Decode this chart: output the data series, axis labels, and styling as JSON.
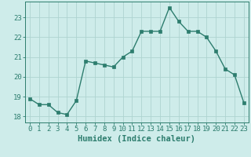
{
  "x": [
    0,
    1,
    2,
    3,
    4,
    5,
    6,
    7,
    8,
    9,
    10,
    11,
    12,
    13,
    14,
    15,
    16,
    17,
    18,
    19,
    20,
    21,
    22,
    23
  ],
  "y": [
    18.9,
    18.6,
    18.6,
    18.2,
    18.1,
    18.8,
    20.8,
    20.7,
    20.6,
    20.5,
    21.0,
    21.3,
    22.3,
    22.3,
    22.3,
    23.5,
    22.8,
    22.3,
    22.3,
    22.0,
    21.3,
    20.4,
    20.1,
    18.7
  ],
  "line_color": "#2d7d6e",
  "bg_color": "#ceecea",
  "grid_color": "#aed4d0",
  "axis_color": "#2d7d6e",
  "xlabel": "Humidex (Indice chaleur)",
  "ylim": [
    17.7,
    23.8
  ],
  "xlim": [
    -0.5,
    23.5
  ],
  "yticks": [
    18,
    19,
    20,
    21,
    22,
    23
  ],
  "xticks": [
    0,
    1,
    2,
    3,
    4,
    5,
    6,
    7,
    8,
    9,
    10,
    11,
    12,
    13,
    14,
    15,
    16,
    17,
    18,
    19,
    20,
    21,
    22,
    23
  ],
  "font_color": "#2d7d6e",
  "marker_size": 2.2,
  "line_width": 1.0,
  "tick_fontsize": 6.5,
  "xlabel_fontsize": 7.5
}
